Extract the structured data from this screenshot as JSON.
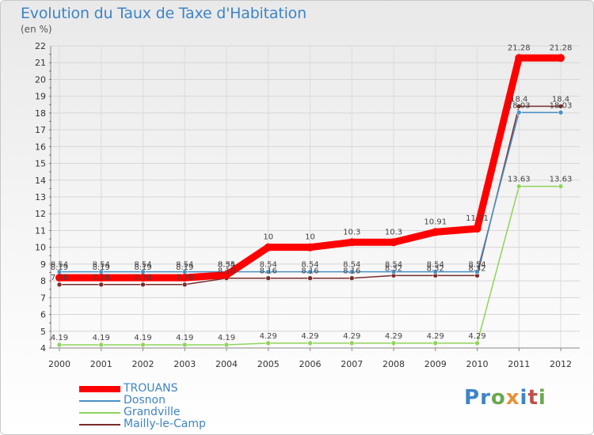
{
  "title": "Evolution du Taux de Taxe d'Habitation",
  "subtitle": "(en %)",
  "logo": {
    "letters": [
      "P",
      "r",
      "o",
      "x",
      "i",
      "t",
      "i"
    ],
    "colors": [
      "#3e84c6",
      "#3e84c6",
      "#6aa84f",
      "#e69138",
      "#3e84c6",
      "#c0504d",
      "#6aa84f"
    ]
  },
  "chart_data": {
    "type": "line",
    "title": "Evolution du Taux de Taxe d'Habitation",
    "subtitle": "(en %)",
    "xlabel": "",
    "ylabel": "(en %)",
    "ylim": [
      4,
      22
    ],
    "yticks": [
      "4",
      "5",
      "6",
      "7",
      "8",
      "9",
      "10",
      "11",
      "12",
      "13",
      "14",
      "15",
      "16",
      "17",
      "18",
      "19",
      "20",
      "21",
      "22"
    ],
    "x": [
      "2000",
      "2001",
      "2002",
      "2003",
      "2004",
      "2005",
      "2006",
      "2007",
      "2008",
      "2009",
      "2010",
      "2011",
      "2012"
    ],
    "grid": true,
    "legend_position": "bottom-left",
    "series": [
      {
        "name": "TROUANS",
        "color": "#ff0000",
        "values": [
          8.19,
          8.19,
          8.19,
          8.19,
          8.35,
          10,
          10,
          10.3,
          10.3,
          10.91,
          11.11,
          21.28,
          21.28
        ],
        "labels": [
          "8.19",
          "8.19",
          "8.19",
          "8.19",
          "8.35",
          "10",
          "10",
          "10.3",
          "10.3",
          "10.91",
          "11.11",
          "21.28",
          "21.28"
        ]
      },
      {
        "name": "Dosnon",
        "color": "#4a90c8",
        "values": [
          8.54,
          8.54,
          8.54,
          8.54,
          8.54,
          8.54,
          8.54,
          8.54,
          8.54,
          8.54,
          8.54,
          18.03,
          18.03
        ],
        "labels": [
          "8.54",
          "8.54",
          "8.54",
          "8.54",
          "8.54",
          "8.54",
          "8.54",
          "8.54",
          "8.54",
          "8.54",
          "8.54",
          "18.03",
          "18.03"
        ]
      },
      {
        "name": "Grandville",
        "color": "#8fd45a",
        "values": [
          4.19,
          4.19,
          4.19,
          4.19,
          4.19,
          4.29,
          4.29,
          4.29,
          4.29,
          4.29,
          4.29,
          13.63,
          13.63
        ],
        "labels": [
          "4.19",
          "4.19",
          "4.19",
          "4.19",
          "4.19",
          "4.29",
          "4.29",
          "4.29",
          "4.29",
          "4.29",
          "4.29",
          "13.63",
          "13.63"
        ]
      },
      {
        "name": "Mailly-le-Camp",
        "color": "#7a2c2c",
        "values": [
          7.78,
          7.78,
          7.78,
          7.78,
          8.16,
          8.16,
          8.16,
          8.16,
          8.32,
          8.32,
          8.32,
          18.4,
          18.4
        ],
        "labels": [
          "7.78",
          "7.78",
          "7.78",
          "7.78",
          "8.16",
          "8.16",
          "8.16",
          "8.16",
          "8.32",
          "8.32",
          "8.32",
          "18.4",
          "18.4"
        ]
      }
    ]
  }
}
